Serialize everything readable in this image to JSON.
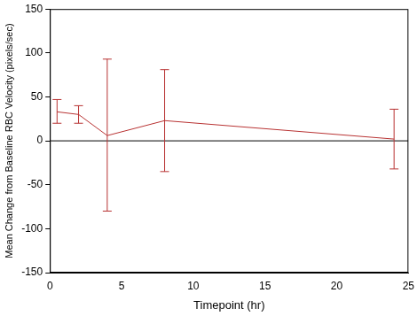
{
  "chart_data": {
    "type": "line",
    "x_label": "Timepoint (hr)",
    "y_label": "Mean Change from Baseline RBC Velocity (pixels/sec)",
    "x": [
      0.5,
      2,
      4,
      8,
      24
    ],
    "values": [
      33,
      30,
      6,
      23,
      2
    ],
    "error_low": [
      20,
      20,
      -80,
      -35,
      -32
    ],
    "error_high": [
      47,
      40,
      93,
      81,
      36
    ],
    "color": "#b83232",
    "reference_line": 0,
    "xlim": [
      0,
      25
    ],
    "xticks": [
      0,
      5,
      10,
      15,
      20,
      25
    ],
    "ylim": [
      -150,
      150
    ],
    "yticks": [
      -150,
      -100,
      -50,
      0,
      50,
      100,
      150
    ],
    "grid": false
  }
}
